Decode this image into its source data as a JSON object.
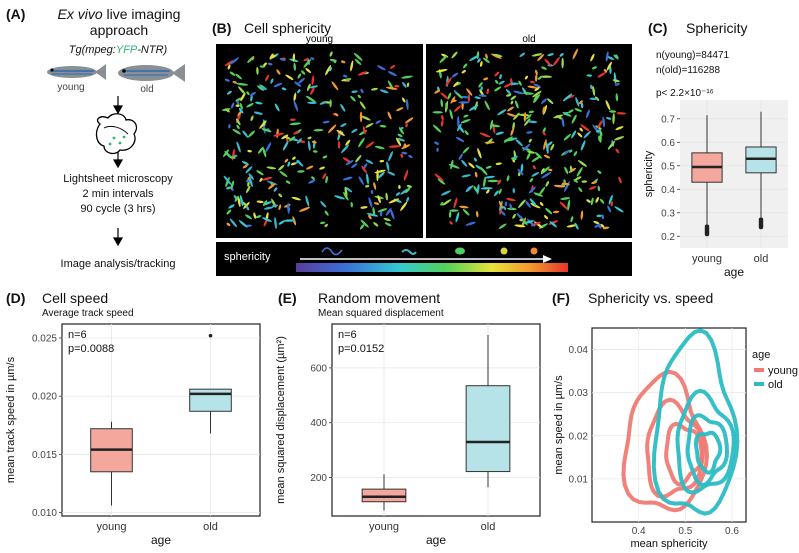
{
  "panelA": {
    "label": "(A)",
    "title_italic": "Ex vivo",
    "title_rest": " live imaging",
    "title_line2": "approach",
    "genotype_pre": "Tg(mpeg:",
    "genotype_yfp": "YFP",
    "genotype_post": "-NTR)",
    "fish_young": "young",
    "fish_old": "old",
    "step1": "Lightsheet microscopy",
    "step2": "2 min intervals",
    "step3": "90 cycle (3 hrs)",
    "step4": "Image analysis/tracking",
    "colors": {
      "yfp": "#2bb673",
      "fish_body": "#8a8f96",
      "fish_stripe": "#2b6cb0"
    }
  },
  "panelB": {
    "label": "(B)",
    "title": "Cell sphericity",
    "young_label": "young",
    "old_label": "old",
    "colorbar_label": "sphericity"
  },
  "chart_data": [
    {
      "id": "C",
      "type": "box",
      "label": "(C)",
      "title": "Sphericity",
      "annotations": [
        "n(young)=84471",
        "n(old)=116288",
        "p< 2.2×10⁻¹⁶"
      ],
      "xlabel": "age",
      "ylabel": "sphericity",
      "categories": [
        "young",
        "old"
      ],
      "ylim": [
        0.15,
        0.78
      ],
      "yticks": [
        0.2,
        0.3,
        0.4,
        0.5,
        0.6,
        0.7
      ],
      "boxes": [
        {
          "name": "young",
          "min": 0.22,
          "q1": 0.43,
          "median": 0.495,
          "q3": 0.555,
          "max": 0.715,
          "outlier_low": [
            0.2,
            0.25
          ],
          "color": "#f4a79d"
        },
        {
          "name": "old",
          "min": 0.28,
          "q1": 0.47,
          "median": 0.53,
          "q3": 0.58,
          "max": 0.73,
          "outlier_low": [
            0.23,
            0.28
          ],
          "color": "#b6e3e7"
        }
      ]
    },
    {
      "id": "D",
      "type": "box",
      "label": "(D)",
      "title": "Cell speed",
      "subtitle": "Average track speed",
      "annotations": [
        "n=6",
        "p=0.0088"
      ],
      "xlabel": "age",
      "ylabel": "mean track speed in µm/s",
      "categories": [
        "young",
        "old"
      ],
      "ylim": [
        0.0097,
        0.0262
      ],
      "yticks": [
        0.01,
        0.015,
        0.02,
        0.025
      ],
      "ytick_labels": [
        "0.010",
        "0.015",
        "0.020",
        "0.025"
      ],
      "boxes": [
        {
          "name": "young",
          "min": 0.0106,
          "q1": 0.0135,
          "median": 0.0154,
          "q3": 0.0172,
          "max": 0.0178,
          "outliers": [],
          "color": "#f4a79d"
        },
        {
          "name": "old",
          "min": 0.0168,
          "q1": 0.0187,
          "median": 0.0202,
          "q3": 0.0206,
          "max": 0.0206,
          "outliers": [
            0.0252
          ],
          "color": "#b6e3e7"
        }
      ]
    },
    {
      "id": "E",
      "type": "box",
      "label": "(E)",
      "title": "Random movement",
      "subtitle": "Mean squared displacement",
      "annotations": [
        "n=6",
        "p=0.0152"
      ],
      "xlabel": "age",
      "ylabel": "mean squared displacement (µm²)",
      "categories": [
        "young",
        "old"
      ],
      "ylim": [
        60,
        760
      ],
      "yticks": [
        200,
        400,
        600
      ],
      "boxes": [
        {
          "name": "young",
          "min": 80,
          "q1": 112,
          "median": 130,
          "q3": 158,
          "max": 212,
          "outliers": [],
          "color": "#f4a79d"
        },
        {
          "name": "old",
          "min": 165,
          "q1": 222,
          "median": 330,
          "q3": 535,
          "max": 720,
          "outliers": [],
          "color": "#b6e3e7"
        }
      ]
    },
    {
      "id": "F",
      "type": "contour",
      "label": "(F)",
      "title": "Sphericity vs. speed",
      "xlabel": "mean sphericity",
      "ylabel": "mean speed in µm/s",
      "legend_title": "age",
      "legend_position": "top-right",
      "xlim": [
        0.3,
        0.63
      ],
      "ylim": [
        0.0,
        0.045
      ],
      "xticks": [
        0.4,
        0.5,
        0.6
      ],
      "yticks": [
        0.01,
        0.02,
        0.03,
        0.04
      ],
      "series": [
        {
          "name": "young",
          "color": "#ef7a74",
          "levels": [
            {
              "cx": 0.455,
              "cy": 0.0175,
              "rx": 0.085,
              "ry": 0.0155
            },
            {
              "cx": 0.475,
              "cy": 0.0165,
              "rx": 0.06,
              "ry": 0.0105
            },
            {
              "cx": 0.495,
              "cy": 0.016,
              "rx": 0.038,
              "ry": 0.0065
            }
          ]
        },
        {
          "name": "old",
          "color": "#2bbcc4",
          "levels": [
            {
              "cx": 0.52,
              "cy": 0.0215,
              "rx": 0.085,
              "ry": 0.0205
            },
            {
              "cx": 0.54,
              "cy": 0.018,
              "rx": 0.06,
              "ry": 0.011
            },
            {
              "cx": 0.545,
              "cy": 0.017,
              "rx": 0.042,
              "ry": 0.0075
            },
            {
              "cx": 0.548,
              "cy": 0.0165,
              "rx": 0.025,
              "ry": 0.0045
            }
          ]
        }
      ]
    }
  ]
}
